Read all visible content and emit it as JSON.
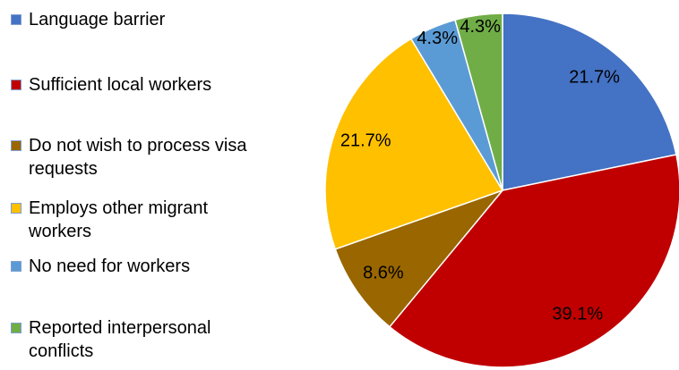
{
  "chart_data": {
    "type": "pie",
    "categories": [
      "Language barrier",
      "Sufficient local workers",
      "Do not wish to process visa requests",
      "Employs other migrant workers",
      "No need for workers",
      "Reported interpersonal conflicts"
    ],
    "values": [
      21.7,
      39.1,
      8.6,
      21.7,
      4.3,
      4.3
    ],
    "value_labels": [
      "21.7%",
      "39.1%",
      "8.6%",
      "21.7%",
      "4.3%",
      "4.3%"
    ],
    "colors": [
      "#4472c4",
      "#c00000",
      "#996600",
      "#ffc000",
      "#5b9bd5",
      "#70ad47"
    ],
    "legend": "left"
  }
}
